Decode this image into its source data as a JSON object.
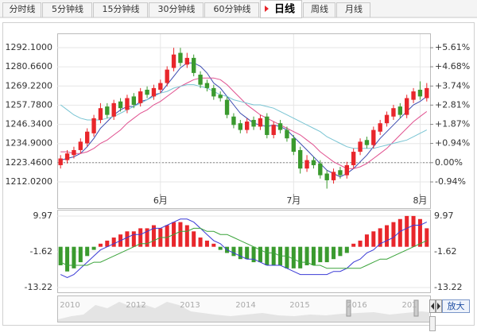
{
  "tabs": [
    "分时线",
    "5分钟线",
    "15分钟线",
    "30分钟线",
    "60分钟线",
    "日线",
    "周线",
    "月线"
  ],
  "active_tab": 5,
  "chart_data": [
    {
      "type": "candlestick",
      "categories": [
        null,
        null,
        null,
        null,
        null,
        null,
        null,
        null,
        null,
        null,
        null,
        null,
        null,
        null,
        null,
        "6月",
        null,
        null,
        null,
        null,
        null,
        null,
        null,
        null,
        null,
        null,
        null,
        null,
        null,
        null,
        null,
        null,
        null,
        null,
        null,
        "7月",
        null,
        null,
        null,
        null,
        null,
        null,
        null,
        null,
        null,
        null,
        null,
        null,
        null,
        null,
        null,
        null,
        null,
        null,
        "8月",
        null
      ],
      "open": [
        1222,
        1225,
        1228,
        1231,
        1235,
        1241,
        1249,
        1257,
        1251,
        1260,
        1255,
        1263,
        1259,
        1267,
        1263,
        1267,
        1271,
        1280,
        1289,
        1282,
        1286,
        1276,
        1271,
        1268,
        1264,
        1261,
        1251,
        1247,
        1243,
        1249,
        1245,
        1251,
        1240,
        1247,
        1243,
        1238,
        1231,
        1220,
        1225,
        1223,
        1217,
        1213,
        1219,
        1216,
        1222,
        1230,
        1237,
        1234,
        1242,
        1247,
        1251,
        1257,
        1252,
        1261,
        1267,
        1262
      ],
      "high": [
        1228,
        1231,
        1233,
        1238,
        1244,
        1252,
        1259,
        1259,
        1261,
        1262,
        1264,
        1265,
        1268,
        1269,
        1270,
        1273,
        1281,
        1292,
        1292,
        1289,
        1288,
        1278,
        1273,
        1270,
        1266,
        1263,
        1253,
        1249,
        1250,
        1251,
        1252,
        1253,
        1248,
        1249,
        1245,
        1240,
        1233,
        1228,
        1227,
        1225,
        1219,
        1220,
        1221,
        1224,
        1232,
        1238,
        1239,
        1245,
        1249,
        1254,
        1258,
        1259,
        1264,
        1268,
        1272,
        1271
      ],
      "low": [
        1220,
        1223,
        1226,
        1229,
        1233,
        1239,
        1247,
        1250,
        1249,
        1254,
        1253,
        1256,
        1257,
        1262,
        1261,
        1265,
        1269,
        1278,
        1281,
        1280,
        1275,
        1268,
        1266,
        1261,
        1260,
        1250,
        1244,
        1241,
        1241,
        1243,
        1243,
        1238,
        1238,
        1241,
        1236,
        1228,
        1217,
        1218,
        1220,
        1214,
        1208,
        1211,
        1214,
        1214,
        1220,
        1228,
        1232,
        1232,
        1240,
        1245,
        1249,
        1250,
        1250,
        1259,
        1261,
        1260
      ],
      "close": [
        1226,
        1229,
        1231,
        1236,
        1242,
        1250,
        1256,
        1252,
        1259,
        1256,
        1262,
        1258,
        1266,
        1264,
        1268,
        1271,
        1279,
        1288,
        1283,
        1286,
        1277,
        1270,
        1268,
        1263,
        1262,
        1252,
        1246,
        1243,
        1248,
        1245,
        1250,
        1240,
        1246,
        1243,
        1238,
        1230,
        1220,
        1225,
        1222,
        1216,
        1213,
        1218,
        1216,
        1222,
        1230,
        1236,
        1234,
        1243,
        1247,
        1252,
        1256,
        1252,
        1262,
        1266,
        1263,
        1268
      ],
      "up_color": "#e8262b",
      "down_color": "#3a9a2e",
      "series": [
        {
          "color": "#3b4bb0",
          "values": [
            1225,
            1226,
            1227,
            1229,
            1233,
            1238,
            1244,
            1248,
            1252,
            1255,
            1257,
            1257,
            1260,
            1261,
            1264,
            1265,
            1270,
            1275,
            1280,
            1283,
            1283,
            1281,
            1277,
            1271,
            1268,
            1263,
            1258,
            1253,
            1250,
            1247,
            1246,
            1245,
            1246,
            1245,
            1243,
            1239,
            1235,
            1231,
            1227,
            1223,
            1219,
            1217,
            1215,
            1217,
            1220,
            1224,
            1228,
            1233,
            1238,
            1242,
            1246,
            1250,
            1254,
            1258,
            1260,
            1263
          ]
        },
        {
          "color": "#e0508f",
          "values": [
            1230,
            1230,
            1229,
            1229,
            1230,
            1232,
            1235,
            1237,
            1240,
            1243,
            1247,
            1250,
            1253,
            1255,
            1258,
            1260,
            1263,
            1266,
            1269,
            1271,
            1273,
            1274,
            1274,
            1274,
            1273,
            1270,
            1266,
            1262,
            1258,
            1255,
            1252,
            1250,
            1248,
            1246,
            1244,
            1242,
            1240,
            1237,
            1234,
            1230,
            1227,
            1224,
            1222,
            1220,
            1220,
            1221,
            1223,
            1226,
            1229,
            1232,
            1236,
            1240,
            1244,
            1248,
            1251,
            1254
          ]
        },
        {
          "color": "#79c4d3",
          "values": [
            1258,
            1255,
            1252,
            1250,
            1249,
            1249,
            1249,
            1250,
            1251,
            1253,
            1255,
            1257,
            1259,
            1261,
            1263,
            1265,
            1266,
            1268,
            1269,
            1270,
            1270,
            1269,
            1268,
            1266,
            1264,
            1263,
            1261,
            1260,
            1259,
            1258,
            1258,
            1257,
            1256,
            1254,
            1252,
            1250,
            1248,
            1246,
            1244,
            1242,
            1239,
            1237,
            1235,
            1233,
            1232,
            1232,
            1232,
            1232,
            1233,
            1234,
            1235,
            1236,
            1237,
            1239,
            1241,
            1243
          ]
        }
      ],
      "ylim": [
        1204.91,
        1296.84
      ],
      "yticks": [
        {
          "value": 1292.1,
          "label": "1292.1000"
        },
        {
          "value": 1280.66,
          "label": "1280.6600"
        },
        {
          "value": 1269.22,
          "label": "1269.2200"
        },
        {
          "value": 1257.78,
          "label": "1257.7800"
        },
        {
          "value": 1246.34,
          "label": "1246.3400"
        },
        {
          "value": 1234.9,
          "label": "1234.9000"
        },
        {
          "value": 1223.46,
          "label": "1223.4600"
        },
        {
          "value": 1212.02,
          "label": "1212.0200"
        }
      ],
      "y2lim": [
        -1.52,
        6.0
      ],
      "y2ticks": [
        {
          "value": 5.61,
          "label": "+5.61%"
        },
        {
          "value": 4.68,
          "label": "+4.68%"
        },
        {
          "value": 3.74,
          "label": "+3.74%"
        },
        {
          "value": 2.81,
          "label": "+2.81%"
        },
        {
          "value": 1.87,
          "label": "+1.87%"
        },
        {
          "value": 0.94,
          "label": "+0.94%"
        },
        {
          "value": 0,
          "label": "0.00%"
        },
        {
          "value": -0.94,
          "label": "-0.94%"
        }
      ],
      "grid": true
    },
    {
      "type": "macd",
      "values": [
        -6,
        -8,
        -7,
        -5,
        -3,
        -1,
        1,
        2,
        3,
        4,
        5,
        5,
        6,
        6,
        7,
        6,
        7,
        8,
        8,
        7,
        5,
        3,
        2,
        1,
        -1,
        -2,
        -3,
        -4,
        -4,
        -5,
        -5,
        -6,
        -6,
        -6,
        -7,
        -7,
        -7,
        -6,
        -6,
        -5,
        -5,
        -4,
        -3,
        -2,
        1,
        2,
        4,
        5,
        6,
        7,
        8,
        9,
        10,
        10,
        9,
        6
      ],
      "up_color": "#e8262b",
      "down_color": "#3a9a2e",
      "series": [
        {
          "color": "#3b3bd6",
          "values": [
            -9,
            -10,
            -9,
            -7,
            -5,
            -3,
            -1,
            0,
            1,
            2,
            3,
            4,
            4,
            5,
            6,
            6,
            7,
            8,
            9,
            9,
            8,
            6,
            4,
            2,
            1,
            -1,
            -2,
            -3,
            -4,
            -4,
            -5,
            -6,
            -6,
            -6,
            -7,
            -8,
            -9,
            -9,
            -9,
            -9,
            -9,
            -8,
            -8,
            -7,
            -5,
            -4,
            -2,
            -1,
            1,
            2,
            3,
            5,
            6,
            7,
            7,
            8
          ]
        },
        {
          "color": "#3aa33a",
          "values": [
            -5,
            -6,
            -6,
            -6,
            -6,
            -5,
            -5,
            -4,
            -3,
            -2,
            -1,
            0,
            1,
            1,
            2,
            3,
            3,
            4,
            5,
            5,
            6,
            6,
            5,
            5,
            4,
            4,
            3,
            2,
            1,
            0,
            -1,
            -2,
            -2,
            -3,
            -3,
            -4,
            -5,
            -5,
            -6,
            -6,
            -7,
            -7,
            -7,
            -7,
            -7,
            -7,
            -6,
            -5,
            -4,
            -4,
            -3,
            -2,
            -1,
            0,
            1,
            2
          ]
        }
      ],
      "ylim": [
        -14.77,
        11.0
      ],
      "yticks": [
        9.97,
        -1.62,
        -13.22
      ],
      "grid": true
    }
  ],
  "navigator": {
    "labels": [
      "2010",
      "2012",
      "2013",
      "2014",
      "2015",
      "2016",
      "201"
    ]
  },
  "zoom_button": "放大"
}
